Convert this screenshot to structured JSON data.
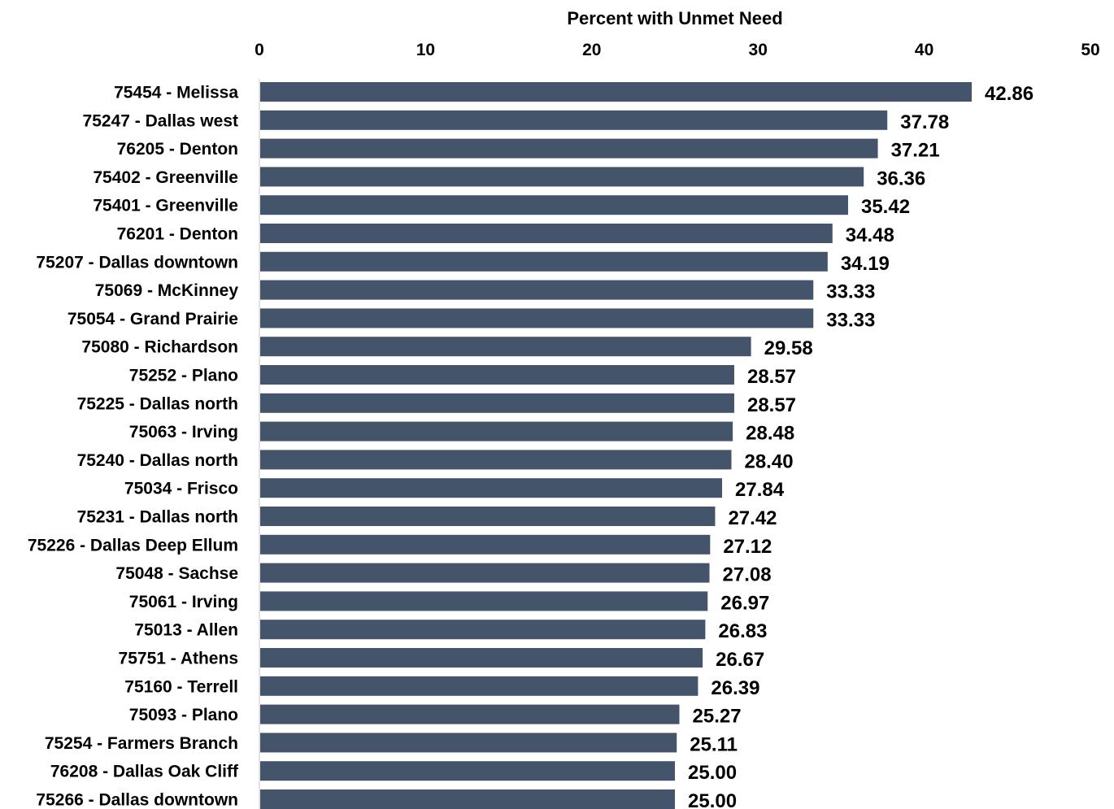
{
  "chart_data": {
    "type": "bar",
    "orientation": "horizontal",
    "title": "",
    "xlabel": "Percent with Unmet Need",
    "ylabel": "",
    "xlim": [
      0,
      50
    ],
    "x_ticks": [
      "0",
      "10",
      "20",
      "30",
      "40",
      "50"
    ],
    "x_axis_position": "top",
    "grid": false,
    "legend": "none",
    "bar_color": "#44546a",
    "categories": [
      "75454 - Melissa",
      "75247 - Dallas west",
      "76205 - Denton",
      "75402 - Greenville",
      "75401 - Greenville",
      "76201 - Denton",
      "75207 - Dallas downtown",
      "75069 - McKinney",
      "75054 - Grand Prairie",
      "75080 - Richardson",
      "75252 - Plano",
      "75225 - Dallas north",
      "75063 - Irving",
      "75240 - Dallas north",
      "75034 - Frisco",
      "75231 - Dallas north",
      "75226 - Dallas Deep Ellum",
      "75048 - Sachse",
      "75061 - Irving",
      "75013 - Allen",
      "75751 - Athens",
      "75160 - Terrell",
      "75093 - Plano",
      "75254 - Farmers Branch",
      "76208 - Dallas Oak Cliff",
      "75266 - Dallas downtown"
    ],
    "values": [
      42.86,
      37.78,
      37.21,
      36.36,
      35.42,
      34.48,
      34.19,
      33.33,
      33.33,
      29.58,
      28.57,
      28.57,
      28.48,
      28.4,
      27.84,
      27.42,
      27.12,
      27.08,
      26.97,
      26.83,
      26.67,
      26.39,
      25.27,
      25.11,
      25.0,
      25.0
    ],
    "data_labels": [
      "42.86",
      "37.78",
      "37.21",
      "36.36",
      "35.42",
      "34.48",
      "34.19",
      "33.33",
      "33.33",
      "29.58",
      "28.57",
      "28.57",
      "28.48",
      "28.40",
      "27.84",
      "27.42",
      "27.12",
      "27.08",
      "26.97",
      "26.83",
      "26.67",
      "26.39",
      "25.27",
      "25.11",
      "25.00",
      "25.00"
    ]
  }
}
